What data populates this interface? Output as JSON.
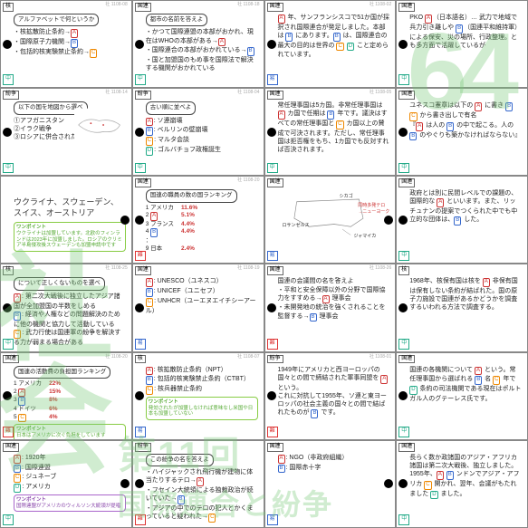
{
  "watermarks": {
    "topRight": "64",
    "left1": "社",
    "left2": "会",
    "bottom1": "第11回",
    "bottom2": "国際連合と紛争"
  },
  "cards": [
    {
      "id": "社 1108-08",
      "tag": "核",
      "diff": "中",
      "diffClass": "green",
      "dotSide": "left",
      "bubble": "アルファベットで何というか",
      "lines": [
        "・核拡散防止条約→<span class='lbl lA'>A</span>",
        "・国際原子力機関→<span class='lbl lB'>B</span>",
        "・包括的核実験禁止条約→<span class='lbl lC'>C</span>"
      ]
    },
    {
      "id": "社 1108-18",
      "tag": "国連",
      "diff": "中",
      "diffClass": "green",
      "dotSide": "left",
      "bubble": "都市の名前を答えよ",
      "lines": [
        "・かつて国際連盟の本部がおかれ、現在はWHOの本部がある→<span class='lbl lA'>A</span>",
        "・国際連合の本部がおかれている→<span class='lbl lB'>B</span>",
        "・国と加盟国のもめ事を国際法で解決する機関がおかれている"
      ]
    },
    {
      "id": "社 1108-02",
      "tag": "国連",
      "diff": "易",
      "diffClass": "blue",
      "dotSide": "left",
      "lines": [
        "<span class='lbl lA'>A</span> 年、サンフランシスコで51か国が採択され国際連合が発足しました。本部は <span class='lbl lB'>B</span> にあります。<span class='lbl lB'>B</span> は、国際連合の最大の目的は世界の <span class='lbl lC'>C</span> <span class='lbl lD'>D</span> こと定められています。"
      ]
    },
    {
      "id": "",
      "tag": "国連",
      "diff": "中",
      "diffClass": "green",
      "dotSide": "left",
      "lines": [
        "PKO <span class='lbl lA'>A</span>（日本語名）… 武力で地域で兵力引き離しや <span class='lbl lB'>B</span>（国連平和維持軍）による保安、災の場所、行政整理。とも多方面で活躍しているが"
      ]
    },
    {
      "id": "社 1108-14",
      "tag": "紛争",
      "diff": "中",
      "diffClass": "green",
      "dotSide": "left",
      "bubble": "以下の国を地図から選べ",
      "lines": [
        "①アフガニスタン",
        "②イラク戦争",
        "③ロシアに併合されたクウェート"
      ],
      "hasMap": true
    },
    {
      "id": "社 1108-04",
      "tag": "紛争",
      "diff": "中",
      "diffClass": "green",
      "dotSide": "left",
      "bubble": "古い順に並べよ",
      "lines": [
        "<span class='lbl lA'>A</span>: ソ連崩壊",
        "<span class='lbl lB'>B</span>: ベルリンの壁崩壊",
        "<span class='lbl lC'>C</span>: マルタ会談",
        "<span class='lbl lD'>D</span>: ゴルバチョフ政権誕生"
      ]
    },
    {
      "id": "社 1108-05",
      "tag": "国連",
      "diff": "中",
      "diffClass": "green",
      "dotSide": "left",
      "lines": [
        "常任理事国は5カ国。非常任理事国は <span class='lbl lA'>A</span> カ国で任期は <span class='lbl lB'>B</span> 年です。議決はすべての常任理事国と <span class='lbl lC'>C</span> カ国以上の賛成で可決されます。ただし、常任理事国は拒否権をもち、1カ国でも反対すれば否決されます。"
      ]
    },
    {
      "id": "",
      "tag": "国連",
      "diff": "中",
      "diffClass": "green",
      "dotSide": "left",
      "lines": [
        "ユネスコ憲章は以下の <span class='lbl lA'>A</span> に書き <span class='lbl lB'>B</span> <span class='lbl lC'>C</span> から書き出しで有名",
        "『<span class='lbl lA'>A</span> は人の <span class='lbl lB'>B</span> の中で起こる。人の <span class='lbl lB'>B</span> のやぐりも築かなければならない』"
      ]
    },
    {
      "id": "",
      "tag": "",
      "diff": "",
      "diffClass": "",
      "dotSide": "right",
      "isRow3c1": true,
      "mainText": "ウクライナ、スウェーデン、スイス、オーストリア",
      "hint1": "ワンポイント",
      "hint2": "ウクライナは加盟しています。北欧のフィンランドは2023年に加盟しました。ロシアのクリミア半島侵攻後スウェーデンも加盟申請中です"
    },
    {
      "id": "社 1108-20",
      "tag": "国連",
      "diff": "難",
      "diffClass": "red",
      "dotSide": "left",
      "bubble": "国連の職員の数の国ランキング",
      "table": [
        [
          "1 アメリカ",
          "11.6%"
        ],
        [
          "2 <span class='lbl lA'>A</span>",
          "5.1%"
        ],
        [
          "3 フランス",
          "4.4%"
        ],
        [
          "4 <span class='lbl lB'>B</span>",
          "4.4%"
        ],
        [
          "：",
          ""
        ],
        [
          "9 日本",
          "2.4%"
        ]
      ]
    },
    {
      "id": "",
      "tag": "国連",
      "diff": "易",
      "diffClass": "blue",
      "dotSide": "right",
      "hasUSMap": true,
      "lines": [
        "シカゴ",
        "同時多発テロ→ニューヨーク",
        "ロサンゼルス",
        "ジャマイカ"
      ],
      "mapLabels": true
    },
    {
      "id": "",
      "tag": "国連",
      "diff": "中",
      "diffClass": "green",
      "dotSide": "left",
      "lines": [
        "政府とは別に民間レベルでの課題の、国際的な <span class='lbl lA'>A</span> といいます。また、リッチュナンの提案でつくられた中でも中立的な団体は、<span class='lbl lB'>B</span> した。"
      ]
    },
    {
      "id": "社 1108-25",
      "tag": "核",
      "diff": "中",
      "diffClass": "green",
      "dotSide": "left",
      "bubble": "について正しくないものを選べ",
      "lines": [
        "<span class='lbl lA'>A</span>: 第二次大戦後に独立したアジア諸国が全加盟国の半数をしめる",
        "<span class='lbl lB'>B</span>: 経済や人権などの問題解決のために他の機関と協力して活動している",
        "<span class='lbl lC'>C</span>: 武力行使は国連軍の紛争を解決する力が弱まる場合がある"
      ]
    },
    {
      "id": "社 1108-19",
      "tag": "国連",
      "diff": "易",
      "diffClass": "blue",
      "dotSide": "left",
      "lines": [
        "<span class='lbl lA'>A</span>: UNESCO（ユネスコ）",
        "<span class='lbl lB'>B</span>: UNICEF（ユニセフ）",
        "<span class='lbl lC'>C</span>: UNHCR（ユーエヌエイチシーアール）"
      ]
    },
    {
      "id": "社 1108-26",
      "tag": "国連",
      "diff": "難",
      "diffClass": "red",
      "dotSide": "left",
      "lines": [
        "国連の会議間の名を答えよ",
        "・平和と安全保障以外の分野で国際協力をすすめる→<span class='lbl lA'>A</span> 理事会",
        "・未開発地の統治を強くされることを監督する→<span class='lbl lB'>B</span> 理事会"
      ]
    },
    {
      "id": "",
      "tag": "核",
      "diff": "中",
      "diffClass": "green",
      "dotSide": "left",
      "lines": [
        "1968年、核保有国は核を <span class='lbl lA'>A</span> 非保有国は保有しない条約が結ばれた。国の原子力施設で国連があるかどうかを調査するいわれる方法で調査する。"
      ]
    },
    {
      "id": "社 1108-20",
      "tag": "国連",
      "diff": "難",
      "diffClass": "red",
      "dotSide": "left",
      "bubble": "国連の活動費の負担国ランキング",
      "table": [
        [
          "1 アメリカ",
          "22%"
        ],
        [
          "2 <span class='lbl lA'>A</span>",
          "15%"
        ],
        [
          "3 <span class='lbl lB'>B</span>",
          "8%"
        ],
        [
          "4 ドイツ",
          "6%"
        ],
        [
          "5 <span class='lbl lC'>C</span>",
          "4%"
        ]
      ],
      "hint1": "ワンポイント",
      "hint2": "日本はアメリカに次ぐ負担をしています"
    },
    {
      "id": "社 1108-07",
      "tag": "核",
      "diff": "易",
      "diffClass": "blue",
      "dotSide": "left",
      "lines": [
        "<span class='lbl lA'>A</span>: 核拡散防止条約（NPT）",
        "<span class='lbl lB'>B</span>: 包括的核実験禁止条約（CTBT）",
        "<span class='lbl lC'>C</span>: 核兵器禁止条約"
      ],
      "hint1": "ワンポイント",
      "hint2": "発効されたが加盟しなければ意味なし米国や日本も加盟していない"
    },
    {
      "id": "社 1108-01",
      "tag": "紛争",
      "diff": "難",
      "diffClass": "red",
      "dotSide": "left",
      "lines": [
        "1949年にアメリカと西ヨーロッパの国々との間で締結された軍事同盟を <span class='lbl lA'>A</span> という。",
        "これに対抗して1955年、ソ連と東ヨーロッパの社会主義の国々との間で結ばれたものが <span class='lbl lB'>B</span> です。"
      ]
    },
    {
      "id": "",
      "tag": "国連",
      "diff": "中",
      "diffClass": "green",
      "dotSide": "left",
      "lines": [
        "国連の各機関について <span class='lbl lA'>A</span> という。常任理事国から選ばれる <span class='lbl lB'>B</span> 名 <span class='lbl lC'>C</span> 年で <span class='lbl lD'>D</span> 条約の司法機関である現在はポルトガル人のグテーレス氏です。"
      ]
    },
    {
      "id": "",
      "tag": "国連",
      "diff": "中",
      "diffClass": "green",
      "dotSide": "right",
      "lines": [
        "<span class='lbl lA'>A</span>: 1920年",
        "<span class='lbl lB'>B</span>: 国際連盟",
        "<span class='lbl lC'>C</span>: ジュネーブ",
        "<span class='lbl lD'>D</span>: アメリカ"
      ],
      "hint1": "ワンポイント",
      "hint2": "国際連盟がアメリカのウィルソン大統領が提唱",
      "hintClass": "purple"
    },
    {
      "id": "",
      "tag": "紛争",
      "diff": "難",
      "diffClass": "red",
      "dotSide": "left",
      "bubble": "この紛争の名を答えよ",
      "lines": [
        "・ハイジャックされ飛行機が建物に体当たりするテロ→<span class='lbl lA'>A</span>",
        "・フセイン大統領による独裁政治が続いていた→<span class='lbl lB'>B</span>",
        "・アジアの中でのテロの犯人とかくまっていると疑われた→<span class='lbl lC'>C</span>"
      ]
    },
    {
      "id": "",
      "tag": "国連",
      "diff": "易",
      "diffClass": "blue",
      "dotSide": "right",
      "lines": [
        "<span class='lbl lA'>A</span>: NGO（非政府組織）",
        "<span class='lbl lB'>B</span>: 国際赤十字"
      ]
    },
    {
      "id": "",
      "tag": "国連",
      "diff": "中",
      "diffClass": "green",
      "dotSide": "left",
      "lines": [
        "長らく数か政諸国のアジア・アフリカ諸国は第二次大戦後、独立しました。1955年、<span class='lbl lA'>A</span> <span class='lbl lB'>B</span> ンドンでアジア・アフリカ <span class='lbl lC'>C</span> 開かれ、翌年、会議がもたれました <span class='lbl lD'>D</span> ました。"
      ]
    }
  ]
}
